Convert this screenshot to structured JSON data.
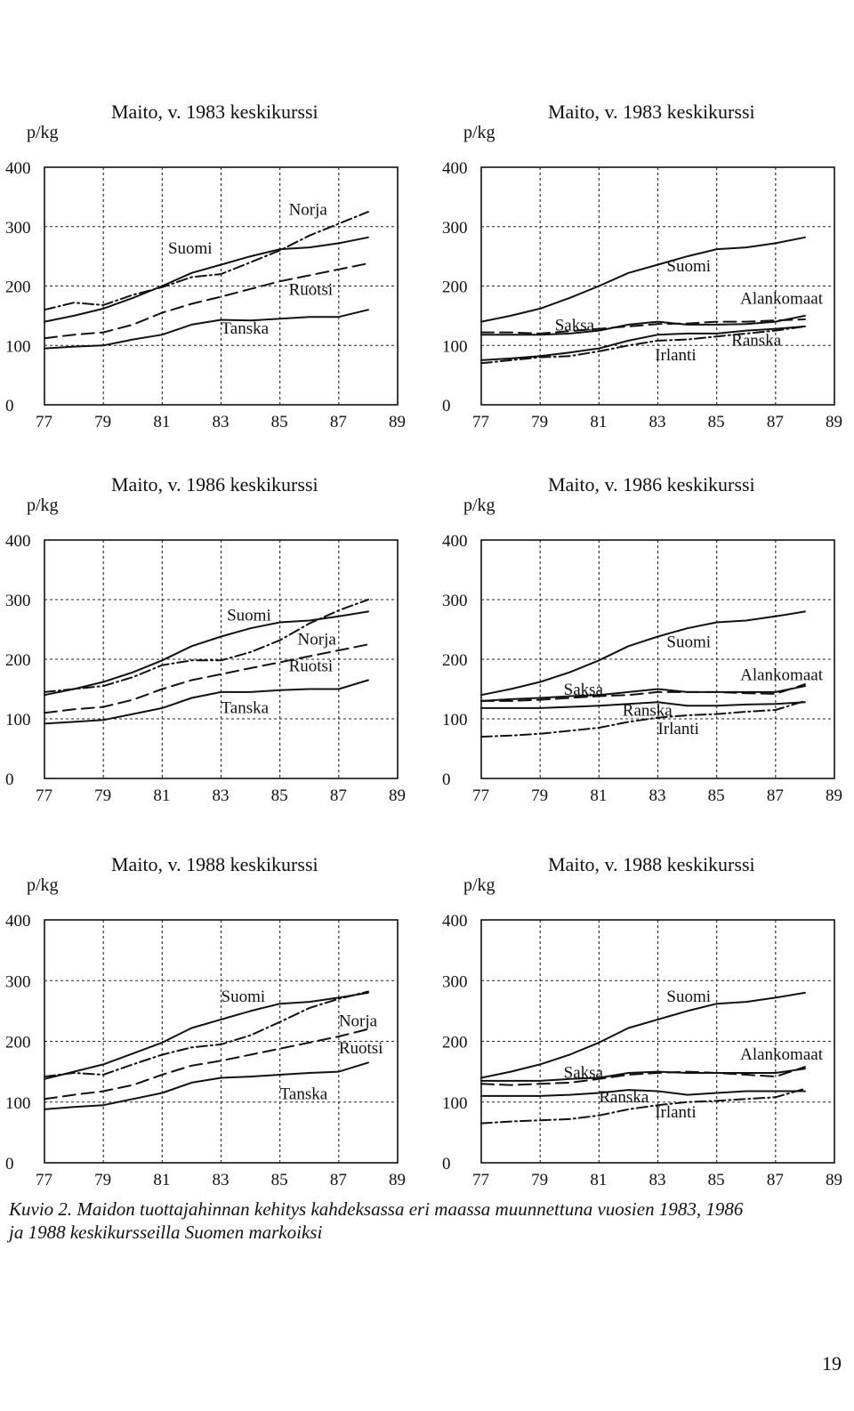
{
  "chart_data": [
    {
      "type": "line",
      "title": "Maito, v. 1983 keskikurssi",
      "ylabel": "p/kg",
      "xlabel": "",
      "ylim": [
        0,
        400
      ],
      "xlim": [
        77,
        89
      ],
      "xticks": [
        "77",
        "79",
        "81",
        "83",
        "85",
        "87",
        "89"
      ],
      "yticks": [
        "0",
        "100",
        "200",
        "300",
        "400"
      ],
      "grid": true,
      "series": [
        {
          "name": "Suomi",
          "style": "solid",
          "x": [
            77,
            78,
            79,
            80,
            81,
            82,
            83,
            84,
            85,
            86,
            87,
            88
          ],
          "values": [
            140,
            150,
            162,
            180,
            200,
            222,
            236,
            250,
            262,
            265,
            272,
            282
          ]
        },
        {
          "name": "Norja",
          "style": "dashdot",
          "x": [
            77,
            78,
            79,
            80,
            81,
            82,
            83,
            84,
            85,
            86,
            87,
            88
          ],
          "values": [
            160,
            172,
            168,
            185,
            198,
            215,
            220,
            240,
            260,
            285,
            305,
            325
          ]
        },
        {
          "name": "Ruotsi",
          "style": "dashed",
          "x": [
            77,
            78,
            79,
            80,
            81,
            82,
            83,
            84,
            85,
            86,
            87,
            88
          ],
          "values": [
            112,
            118,
            122,
            135,
            155,
            170,
            182,
            195,
            208,
            218,
            228,
            238
          ]
        },
        {
          "name": "Tanska",
          "style": "solid",
          "x": [
            77,
            78,
            79,
            80,
            81,
            82,
            83,
            84,
            85,
            86,
            87,
            88
          ],
          "values": [
            95,
            98,
            100,
            110,
            118,
            135,
            143,
            142,
            145,
            148,
            148,
            160
          ]
        }
      ],
      "annotations": [
        {
          "text": "Suomi",
          "series": "Suomi"
        },
        {
          "text": "Norja",
          "series": "Norja"
        },
        {
          "text": "Ruotsi",
          "series": "Ruotsi"
        },
        {
          "text": "Tanska",
          "series": "Tanska"
        }
      ]
    },
    {
      "type": "line",
      "title": "Maito, v. 1983 keskikurssi",
      "ylabel": "p/kg",
      "xlabel": "",
      "ylim": [
        0,
        400
      ],
      "xlim": [
        77,
        89
      ],
      "xticks": [
        "77",
        "79",
        "81",
        "83",
        "85",
        "87",
        "89"
      ],
      "yticks": [
        "0",
        "100",
        "200",
        "300",
        "400"
      ],
      "grid": true,
      "series": [
        {
          "name": "Suomi",
          "style": "solid",
          "x": [
            77,
            78,
            79,
            80,
            81,
            82,
            83,
            84,
            85,
            86,
            87,
            88
          ],
          "values": [
            140,
            150,
            162,
            180,
            200,
            222,
            236,
            250,
            262,
            265,
            272,
            282
          ]
        },
        {
          "name": "Alankomaat",
          "style": "dashed",
          "x": [
            77,
            78,
            79,
            80,
            81,
            82,
            83,
            84,
            85,
            86,
            87,
            88
          ],
          "values": [
            122,
            122,
            120,
            124,
            128,
            132,
            136,
            137,
            140,
            140,
            142,
            144
          ]
        },
        {
          "name": "Saksa",
          "style": "solid",
          "x": [
            77,
            78,
            79,
            80,
            81,
            82,
            83,
            84,
            85,
            86,
            87,
            88
          ],
          "values": [
            118,
            118,
            118,
            120,
            125,
            135,
            140,
            135,
            135,
            136,
            140,
            150
          ]
        },
        {
          "name": "Ranska",
          "style": "dashdot",
          "x": [
            77,
            78,
            79,
            80,
            81,
            82,
            83,
            84,
            85,
            86,
            87,
            88
          ],
          "values": [
            70,
            75,
            80,
            82,
            90,
            100,
            108,
            110,
            115,
            120,
            125,
            132
          ]
        },
        {
          "name": "Irlanti",
          "style": "solid",
          "x": [
            77,
            78,
            79,
            80,
            81,
            82,
            83,
            84,
            85,
            86,
            87,
            88
          ],
          "values": [
            75,
            78,
            82,
            88,
            95,
            108,
            118,
            120,
            120,
            125,
            128,
            132
          ]
        }
      ],
      "annotations": [
        {
          "text": "Suomi",
          "series": "Suomi"
        },
        {
          "text": "Alankomaat",
          "series": "Alankomaat"
        },
        {
          "text": "Saksa",
          "series": "Saksa"
        },
        {
          "text": "Ranska",
          "series": "Ranska"
        },
        {
          "text": "Irlanti",
          "series": "Irlanti"
        }
      ]
    },
    {
      "type": "line",
      "title": "Maito, v. 1986 keskikurssi",
      "ylabel": "p/kg",
      "xlabel": "",
      "ylim": [
        0,
        400
      ],
      "xlim": [
        77,
        89
      ],
      "xticks": [
        "77",
        "79",
        "81",
        "83",
        "85",
        "87",
        "89"
      ],
      "yticks": [
        "0",
        "100",
        "200",
        "300",
        "400"
      ],
      "grid": true,
      "series": [
        {
          "name": "Suomi",
          "style": "solid",
          "x": [
            77,
            78,
            79,
            80,
            81,
            82,
            83,
            84,
            85,
            86,
            87,
            88
          ],
          "values": [
            140,
            150,
            162,
            178,
            198,
            222,
            238,
            252,
            262,
            265,
            272,
            280
          ]
        },
        {
          "name": "Norja",
          "style": "dashdot",
          "x": [
            77,
            78,
            79,
            80,
            81,
            82,
            83,
            84,
            85,
            86,
            87,
            88
          ],
          "values": [
            145,
            150,
            155,
            170,
            190,
            198,
            198,
            212,
            232,
            260,
            282,
            300
          ]
        },
        {
          "name": "Ruotsi",
          "style": "dashed",
          "x": [
            77,
            78,
            79,
            80,
            81,
            82,
            83,
            84,
            85,
            86,
            87,
            88
          ],
          "values": [
            110,
            116,
            120,
            132,
            150,
            165,
            175,
            185,
            195,
            205,
            215,
            225
          ]
        },
        {
          "name": "Tanska",
          "style": "solid",
          "x": [
            77,
            78,
            79,
            80,
            81,
            82,
            83,
            84,
            85,
            86,
            87,
            88
          ],
          "values": [
            92,
            95,
            98,
            108,
            118,
            135,
            145,
            145,
            148,
            150,
            150,
            165
          ]
        }
      ],
      "annotations": [
        {
          "text": "Suomi",
          "series": "Suomi"
        },
        {
          "text": "Norja",
          "series": "Norja"
        },
        {
          "text": "Ruotsi",
          "series": "Ruotsi"
        },
        {
          "text": "Tanska",
          "series": "Tanska"
        }
      ]
    },
    {
      "type": "line",
      "title": "Maito, v. 1986 keskikurssi",
      "ylabel": "p/kg",
      "xlabel": "",
      "ylim": [
        0,
        400
      ],
      "xlim": [
        77,
        89
      ],
      "xticks": [
        "77",
        "79",
        "81",
        "83",
        "85",
        "87",
        "89"
      ],
      "yticks": [
        "0",
        "100",
        "200",
        "300",
        "400"
      ],
      "grid": true,
      "series": [
        {
          "name": "Suomi",
          "style": "solid",
          "x": [
            77,
            78,
            79,
            80,
            81,
            82,
            83,
            84,
            85,
            86,
            87,
            88
          ],
          "values": [
            140,
            150,
            162,
            178,
            198,
            222,
            238,
            252,
            262,
            265,
            272,
            280
          ]
        },
        {
          "name": "Alankomaat",
          "style": "dashed",
          "x": [
            77,
            78,
            79,
            80,
            81,
            82,
            83,
            84,
            85,
            86,
            87,
            88
          ],
          "values": [
            130,
            130,
            132,
            135,
            138,
            140,
            145,
            145,
            145,
            143,
            142,
            158
          ]
        },
        {
          "name": "Saksa",
          "style": "solid",
          "x": [
            77,
            78,
            79,
            80,
            81,
            82,
            83,
            84,
            85,
            86,
            87,
            88
          ],
          "values": [
            130,
            133,
            135,
            138,
            140,
            145,
            150,
            145,
            145,
            145,
            145,
            155
          ]
        },
        {
          "name": "Ranska",
          "style": "solid",
          "x": [
            77,
            78,
            79,
            80,
            81,
            82,
            83,
            84,
            85,
            86,
            87,
            88
          ],
          "values": [
            118,
            118,
            118,
            120,
            122,
            125,
            128,
            122,
            122,
            124,
            125,
            128
          ]
        },
        {
          "name": "Irlanti",
          "style": "dashdot",
          "x": [
            77,
            78,
            79,
            80,
            81,
            82,
            83,
            84,
            85,
            86,
            87,
            88
          ],
          "values": [
            70,
            72,
            75,
            80,
            85,
            95,
            102,
            106,
            108,
            112,
            115,
            130
          ]
        }
      ],
      "annotations": [
        {
          "text": "Suomi",
          "series": "Suomi"
        },
        {
          "text": "Alankomaat",
          "series": "Alankomaat"
        },
        {
          "text": "Saksa",
          "series": "Saksa"
        },
        {
          "text": "Ranska",
          "series": "Ranska"
        },
        {
          "text": "Irlanti",
          "series": "Irlanti"
        }
      ]
    },
    {
      "type": "line",
      "title": "Maito, v. 1988 keskikurssi",
      "ylabel": "p/kg",
      "xlabel": "",
      "ylim": [
        0,
        400
      ],
      "xlim": [
        77,
        89
      ],
      "xticks": [
        "77",
        "79",
        "81",
        "83",
        "85",
        "87",
        "89"
      ],
      "yticks": [
        "0",
        "100",
        "200",
        "300",
        "400"
      ],
      "grid": true,
      "series": [
        {
          "name": "Suomi",
          "style": "solid",
          "x": [
            77,
            78,
            79,
            80,
            81,
            82,
            83,
            84,
            85,
            86,
            87,
            88
          ],
          "values": [
            138,
            150,
            162,
            180,
            198,
            222,
            236,
            250,
            262,
            265,
            272,
            280
          ]
        },
        {
          "name": "Norja",
          "style": "dashdot",
          "x": [
            77,
            78,
            79,
            80,
            81,
            82,
            83,
            84,
            85,
            86,
            87,
            88
          ],
          "values": [
            142,
            148,
            145,
            162,
            178,
            190,
            195,
            210,
            232,
            255,
            270,
            282
          ]
        },
        {
          "name": "Ruotsi",
          "style": "dashed",
          "x": [
            77,
            78,
            79,
            80,
            81,
            82,
            83,
            84,
            85,
            86,
            87,
            88
          ],
          "values": [
            105,
            112,
            118,
            128,
            145,
            160,
            168,
            178,
            188,
            198,
            208,
            220
          ]
        },
        {
          "name": "Tanska",
          "style": "solid",
          "x": [
            77,
            78,
            79,
            80,
            81,
            82,
            83,
            84,
            85,
            86,
            87,
            88
          ],
          "values": [
            88,
            92,
            95,
            105,
            115,
            132,
            140,
            142,
            145,
            148,
            150,
            165
          ]
        }
      ],
      "annotations": [
        {
          "text": "Suomi",
          "series": "Suomi"
        },
        {
          "text": "Norja",
          "series": "Norja"
        },
        {
          "text": "Ruotsi",
          "series": "Ruotsi"
        },
        {
          "text": "Tanska",
          "series": "Tanska"
        }
      ]
    },
    {
      "type": "line",
      "title": "Maito, v. 1988 keskikurssi",
      "ylabel": "p/kg",
      "xlabel": "",
      "ylim": [
        0,
        400
      ],
      "xlim": [
        77,
        89
      ],
      "xticks": [
        "77",
        "79",
        "81",
        "83",
        "85",
        "87",
        "89"
      ],
      "yticks": [
        "0",
        "100",
        "200",
        "300",
        "400"
      ],
      "grid": true,
      "series": [
        {
          "name": "Suomi",
          "style": "solid",
          "x": [
            77,
            78,
            79,
            80,
            81,
            82,
            83,
            84,
            85,
            86,
            87,
            88
          ],
          "values": [
            140,
            150,
            162,
            178,
            198,
            222,
            236,
            250,
            262,
            265,
            272,
            280
          ]
        },
        {
          "name": "Alankomaat",
          "style": "dashed",
          "x": [
            77,
            78,
            79,
            80,
            81,
            82,
            83,
            84,
            85,
            86,
            87,
            88
          ],
          "values": [
            130,
            128,
            130,
            132,
            138,
            145,
            148,
            150,
            148,
            145,
            142,
            158
          ]
        },
        {
          "name": "Saksa",
          "style": "solid",
          "x": [
            77,
            78,
            79,
            80,
            81,
            82,
            83,
            84,
            85,
            86,
            87,
            88
          ],
          "values": [
            135,
            135,
            135,
            138,
            140,
            148,
            150,
            148,
            148,
            148,
            148,
            155
          ]
        },
        {
          "name": "Ranska",
          "style": "solid",
          "x": [
            77,
            78,
            79,
            80,
            81,
            82,
            83,
            84,
            85,
            86,
            87,
            88
          ],
          "values": [
            110,
            110,
            110,
            112,
            115,
            120,
            118,
            112,
            115,
            118,
            118,
            118
          ]
        },
        {
          "name": "Irlanti",
          "style": "dashdot",
          "x": [
            77,
            78,
            79,
            80,
            81,
            82,
            83,
            84,
            85,
            86,
            87,
            88
          ],
          "values": [
            65,
            68,
            70,
            72,
            78,
            88,
            95,
            100,
            102,
            105,
            108,
            122
          ]
        }
      ],
      "annotations": [
        {
          "text": "Suomi",
          "series": "Suomi"
        },
        {
          "text": "Alankomaat",
          "series": "Alankomaat"
        },
        {
          "text": "Saksa",
          "series": "Saksa"
        },
        {
          "text": "Ranska",
          "series": "Ranska"
        },
        {
          "text": "Irlanti",
          "series": "Irlanti"
        }
      ]
    }
  ],
  "caption": {
    "text_line1": "Kuvio 2. Maidon tuottajahinnan kehitys kahdeksassa eri maassa muunnettuna vuosien 1983, 1986",
    "text_line2": "ja 1988 keskikursseilla Suomen markoiksi"
  },
  "page_number": "19"
}
